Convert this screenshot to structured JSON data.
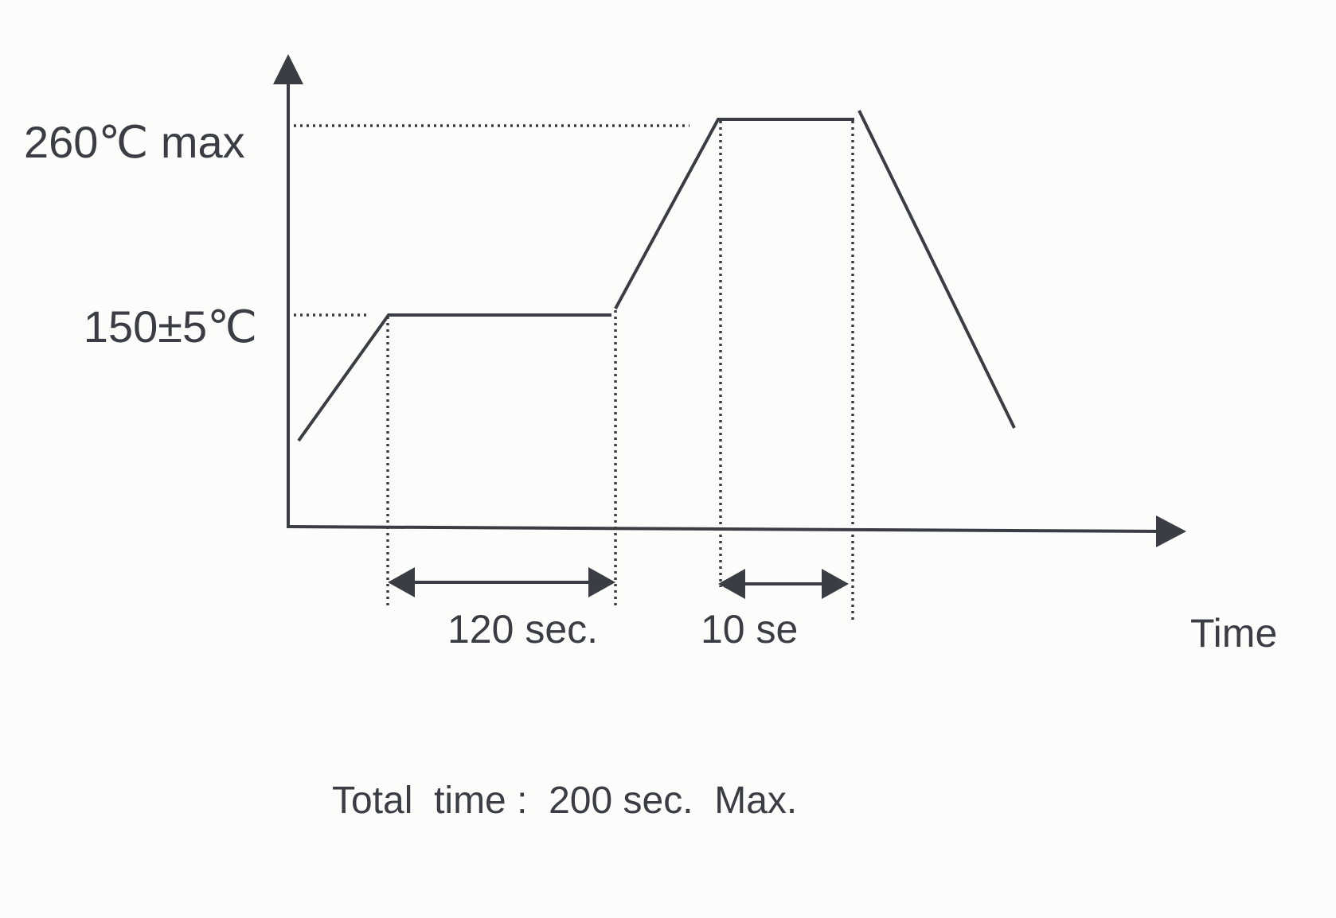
{
  "labels": {
    "peak_temp": "260℃ max",
    "soak_temp": "150±5℃",
    "soak_time": "120 sec.",
    "peak_time": "10 se",
    "x_axis": "Time"
  },
  "footer": {
    "total": "Total  time :  200 sec.  Max."
  }
}
